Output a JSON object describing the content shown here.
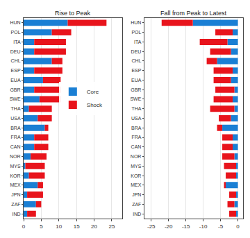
{
  "chart_data": [
    {
      "type": "bar",
      "title": "Rise to Peak",
      "orientation": "horizontal",
      "stacked": true,
      "grid": true,
      "legend": "center",
      "categories": [
        "HUN",
        "POL",
        "ITA",
        "DEU",
        "CHL",
        "ESP",
        "EUA",
        "GBR",
        "SWE",
        "THA",
        "USA",
        "BRA",
        "FRA",
        "CAN",
        "NOR",
        "MYS",
        "KOR",
        "MEX",
        "JPN",
        "ZAF",
        "IND"
      ],
      "series": [
        {
          "name": "Core",
          "color": "#1a7fd4",
          "values": [
            12.5,
            8,
            3,
            3,
            8,
            3,
            5.5,
            3,
            4.5,
            1.5,
            4,
            6,
            3,
            3,
            2,
            0.5,
            1.5,
            4,
            1,
            3.5,
            1
          ]
        },
        {
          "name": "Shock",
          "color": "#e8141c",
          "values": [
            11,
            5.5,
            9,
            9,
            3,
            8,
            5,
            7.5,
            6,
            6.5,
            4,
            1,
            4,
            4,
            4.5,
            5.5,
            4.5,
            1.5,
            4.5,
            1.5,
            2.5
          ]
        }
      ],
      "xlim": [
        0,
        28
      ],
      "xticks": [
        0,
        5,
        10,
        15,
        20,
        25
      ]
    },
    {
      "type": "bar",
      "title": "Fall from Peak to Latest",
      "orientation": "horizontal",
      "stacked": true,
      "grid": true,
      "categories": [
        "HUN",
        "POL",
        "ITA",
        "DEU",
        "CHL",
        "ESP",
        "EUA",
        "GBR",
        "SWE",
        "THA",
        "USA",
        "BRA",
        "FRA",
        "CAN",
        "NOR",
        "MYS",
        "KOR",
        "MEX",
        "JPN",
        "ZAF",
        "IND"
      ],
      "series": [
        {
          "name": "Core",
          "color": "#1a7fd4",
          "values": [
            -13,
            -1.5,
            -3,
            -2,
            -6,
            -1.5,
            -2,
            -1,
            -1.5,
            -1,
            -2,
            -4.5,
            -1.5,
            -1.5,
            -1,
            -0.5,
            -0.5,
            -3.5,
            -0.5,
            -1,
            -0.5
          ]
        },
        {
          "name": "Shock",
          "color": "#e8141c",
          "values": [
            -9,
            -5,
            -8,
            -6,
            -3,
            -5.5,
            -5,
            -5.5,
            -5.5,
            -7,
            -3.5,
            -1.5,
            -3,
            -3,
            -3.5,
            -3.5,
            -3,
            -0.5,
            -2,
            -2,
            -2
          ]
        }
      ],
      "xlim": [
        -27,
        1.5
      ],
      "xticks": [
        -25,
        -20,
        -15,
        -10,
        -5,
        0
      ]
    }
  ]
}
